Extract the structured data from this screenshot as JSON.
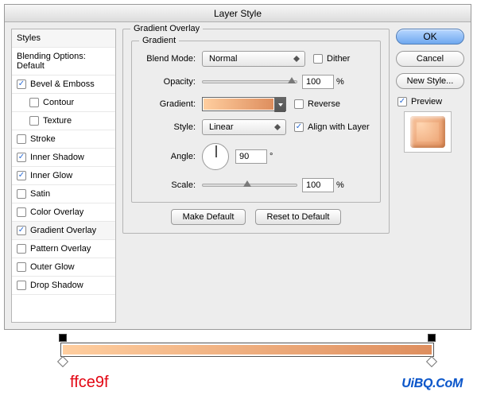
{
  "dialog": {
    "title": "Layer Style",
    "sidebar": {
      "header": "Styles",
      "blendingOptions": "Blending Options: Default",
      "items": [
        {
          "label": "Bevel & Emboss",
          "checked": true,
          "indent": false
        },
        {
          "label": "Contour",
          "checked": false,
          "indent": true
        },
        {
          "label": "Texture",
          "checked": false,
          "indent": true
        },
        {
          "label": "Stroke",
          "checked": false,
          "indent": false
        },
        {
          "label": "Inner Shadow",
          "checked": true,
          "indent": false
        },
        {
          "label": "Inner Glow",
          "checked": true,
          "indent": false
        },
        {
          "label": "Satin",
          "checked": false,
          "indent": false
        },
        {
          "label": "Color Overlay",
          "checked": false,
          "indent": false
        },
        {
          "label": "Gradient Overlay",
          "checked": true,
          "indent": false,
          "selected": true
        },
        {
          "label": "Pattern Overlay",
          "checked": false,
          "indent": false
        },
        {
          "label": "Outer Glow",
          "checked": false,
          "indent": false
        },
        {
          "label": "Drop Shadow",
          "checked": false,
          "indent": false
        }
      ]
    },
    "panel": {
      "title": "Gradient Overlay",
      "subTitle": "Gradient",
      "labels": {
        "blendMode": "Blend Mode:",
        "opacity": "Opacity:",
        "gradient": "Gradient:",
        "style": "Style:",
        "angle": "Angle:",
        "scale": "Scale:"
      },
      "blendMode": "Normal",
      "dither": {
        "label": "Dither",
        "checked": false
      },
      "opacity": {
        "value": "100",
        "unit": "%",
        "sliderPos": 100
      },
      "gradient": {
        "start": "#ffce9f",
        "end": "#de8e5e"
      },
      "reverse": {
        "label": "Reverse",
        "checked": false
      },
      "style": "Linear",
      "align": {
        "label": "Align with Layer",
        "checked": true
      },
      "angle": {
        "value": "90",
        "unit": "°"
      },
      "scale": {
        "value": "100",
        "unit": "%",
        "sliderPos": 50
      },
      "makeDefault": "Make Default",
      "resetDefault": "Reset to Default"
    },
    "right": {
      "ok": "OK",
      "cancel": "Cancel",
      "newStyle": "New Style...",
      "preview": {
        "label": "Preview",
        "checked": true,
        "color": "#ed9f75"
      }
    }
  },
  "gradientBar": {
    "start": "#ffce9f",
    "end": "#de8e5e",
    "label": "ffce9f"
  },
  "logo": "UiBQ.CoM"
}
